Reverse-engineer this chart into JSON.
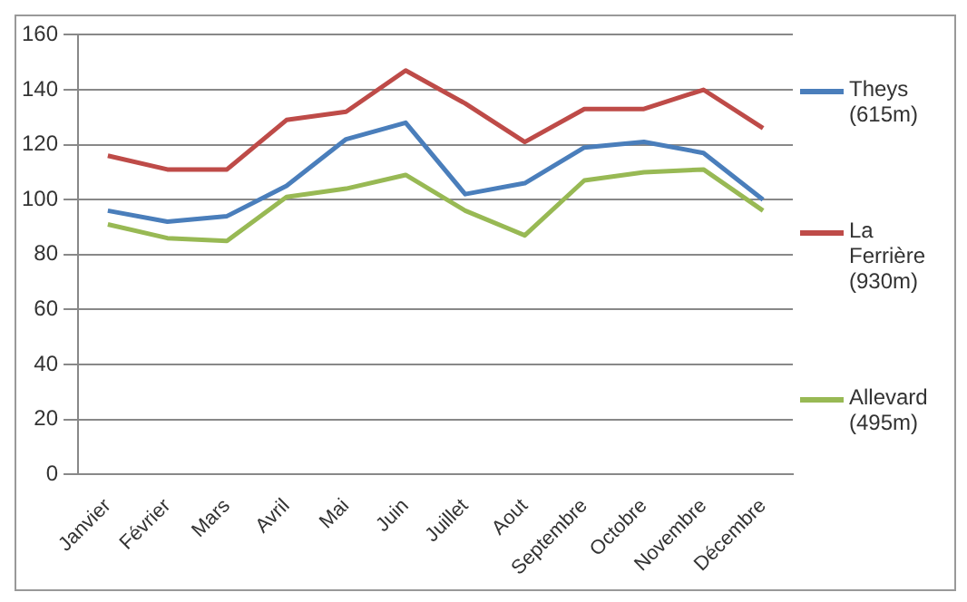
{
  "chart_data": {
    "type": "line",
    "categories": [
      "Janvier",
      "Février",
      "Mars",
      "Avril",
      "Mai",
      "Juin",
      "Juillet",
      "Aout",
      "Septembre",
      "Octobre",
      "Novembre",
      "Décembre"
    ],
    "series": [
      {
        "name": "Theys (615m)",
        "color": "#4a7ebb",
        "values": [
          96,
          92,
          94,
          105,
          122,
          128,
          102,
          106,
          119,
          121,
          117,
          100
        ]
      },
      {
        "name": "La Ferrière (930m)",
        "color": "#be4b48",
        "values": [
          116,
          111,
          111,
          129,
          132,
          147,
          135,
          121,
          133,
          133,
          140,
          126
        ]
      },
      {
        "name": "Allevard (495m)",
        "color": "#98b954",
        "values": [
          91,
          86,
          85,
          101,
          104,
          109,
          96,
          87,
          107,
          110,
          111,
          96
        ]
      }
    ],
    "ylim": [
      0,
      160
    ],
    "yticks": [
      0,
      20,
      40,
      60,
      80,
      100,
      120,
      140,
      160
    ],
    "grid": "y",
    "legend": "right",
    "marker": "none",
    "line_style": "solid"
  }
}
